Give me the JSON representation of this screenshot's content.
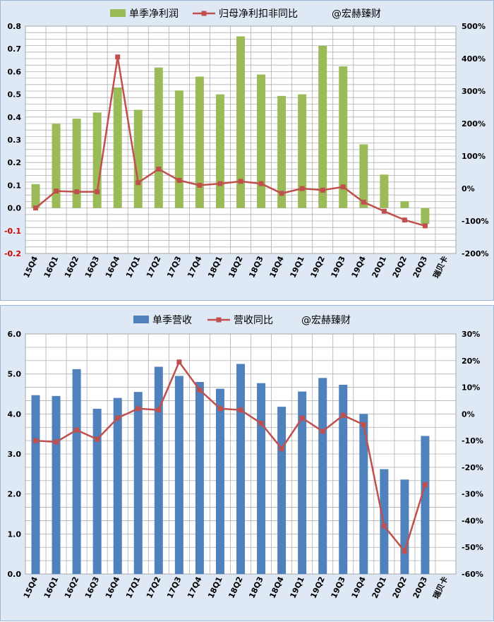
{
  "chart_data": [
    {
      "type": "bar",
      "legend": {
        "bar": "单季净利润",
        "line": "归母净利扣非同比",
        "watermark": "@宏赫臻财"
      },
      "categories": [
        "15Q4",
        "16Q1",
        "16Q2",
        "16Q3",
        "16Q4",
        "17Q1",
        "17Q2",
        "17Q3",
        "17Q4",
        "18Q1",
        "18Q2",
        "18Q3",
        "18Q4",
        "19Q1",
        "19Q2",
        "19Q3",
        "19Q4",
        "20Q1",
        "20Q2",
        "20Q3",
        "瑞贝卡"
      ],
      "series": [
        {
          "kind": "bar",
          "axis": "left",
          "values": [
            0.105,
            0.37,
            0.393,
            0.42,
            0.53,
            0.432,
            0.618,
            0.517,
            0.578,
            0.5,
            0.755,
            0.587,
            0.493,
            0.5,
            0.713,
            0.623,
            0.28,
            0.147,
            0.03,
            -0.07,
            null
          ],
          "color": "#9bbb59"
        },
        {
          "kind": "line",
          "axis": "right",
          "values": [
            -60,
            -8,
            -10,
            -10,
            405,
            18,
            60,
            25,
            10,
            15,
            22,
            15,
            -15,
            0,
            -5,
            5,
            -42,
            -70,
            -97,
            -115,
            null
          ],
          "color": "#c0504d"
        }
      ],
      "ylim": [
        -0.2,
        0.8
      ],
      "yticks": [
        "0.8",
        "0.7",
        "0.6",
        "0.5",
        "0.4",
        "0.3",
        "0.2",
        "0.1",
        "0.0",
        "-0.1",
        "-0.2"
      ],
      "y2lim": [
        -200,
        500
      ],
      "y2ticks": [
        "500%",
        "400%",
        "300%",
        "200%",
        "100%",
        "0%",
        "-100%",
        "-200%"
      ],
      "grid": true
    },
    {
      "type": "bar",
      "legend": {
        "bar": "单季营收",
        "line": "营收同比",
        "watermark": "@宏赫臻财"
      },
      "categories": [
        "15Q4",
        "16Q1",
        "16Q2",
        "16Q3",
        "16Q4",
        "17Q1",
        "17Q2",
        "17Q3",
        "17Q4",
        "18Q1",
        "18Q2",
        "18Q3",
        "18Q4",
        "19Q1",
        "19Q2",
        "19Q3",
        "19Q4",
        "20Q1",
        "20Q2",
        "20Q3",
        "瑞贝卡"
      ],
      "series": [
        {
          "kind": "bar",
          "axis": "left",
          "values": [
            4.47,
            4.45,
            5.12,
            4.13,
            4.4,
            4.55,
            5.18,
            4.95,
            4.8,
            4.63,
            5.25,
            4.77,
            4.18,
            4.56,
            4.9,
            4.73,
            4.0,
            2.62,
            2.36,
            3.45,
            null
          ],
          "color": "#4f81bd"
        },
        {
          "kind": "line",
          "axis": "right",
          "values": [
            -10,
            -10.5,
            -6,
            -9.5,
            -1.5,
            2,
            1.5,
            19.5,
            9,
            2,
            1.5,
            -3.5,
            -13,
            -1.5,
            -6.5,
            -0.5,
            -4,
            -42,
            -51.5,
            -26.5,
            null
          ],
          "color": "#c0504d"
        }
      ],
      "ylim": [
        0,
        6
      ],
      "yticks": [
        "6.0",
        "5.0",
        "4.0",
        "3.0",
        "2.0",
        "1.0",
        "0.0"
      ],
      "y2lim": [
        -60,
        30
      ],
      "y2ticks": [
        "30%",
        "20%",
        "10%",
        "0%",
        "-10%",
        "-20%",
        "-30%",
        "-40%",
        "-50%",
        "-60%"
      ],
      "grid": true
    }
  ]
}
